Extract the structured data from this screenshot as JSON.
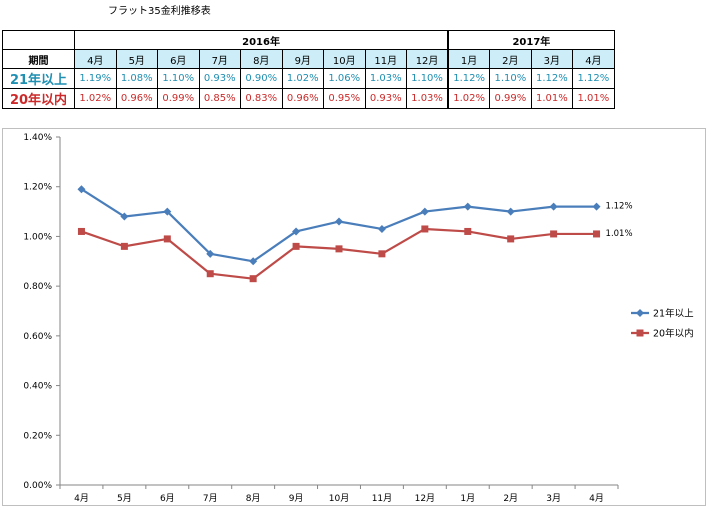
{
  "title": "フラット35金利推移表",
  "table": {
    "years": [
      {
        "label": "",
        "span": 1
      },
      {
        "label": "2016年",
        "span": 9
      },
      {
        "label": "2017年",
        "span": 4
      }
    ],
    "period_label": "期間",
    "months": [
      "4月",
      "5月",
      "6月",
      "7月",
      "8月",
      "9月",
      "10月",
      "11月",
      "12月",
      "1月",
      "2月",
      "3月",
      "4月"
    ],
    "rows": [
      {
        "label": "21年以上",
        "values": [
          "1.19%",
          "1.08%",
          "1.10%",
          "0.93%",
          "0.90%",
          "1.02%",
          "1.06%",
          "1.03%",
          "1.10%",
          "1.12%",
          "1.10%",
          "1.12%",
          "1.12%"
        ]
      },
      {
        "label": "20年以内",
        "values": [
          "1.02%",
          "0.96%",
          "0.99%",
          "0.85%",
          "0.83%",
          "0.96%",
          "0.95%",
          "0.93%",
          "1.03%",
          "1.02%",
          "0.99%",
          "1.01%",
          "1.01%"
        ]
      }
    ]
  },
  "chart_data": {
    "type": "line",
    "categories": [
      "4月",
      "5月",
      "6月",
      "7月",
      "8月",
      "9月",
      "10月",
      "11月",
      "12月",
      "1月",
      "2月",
      "3月",
      "4月"
    ],
    "series": [
      {
        "name": "21年以上",
        "color": "#4a7ebb",
        "marker": "diamond",
        "values": [
          1.19,
          1.08,
          1.1,
          0.93,
          0.9,
          1.02,
          1.06,
          1.03,
          1.1,
          1.12,
          1.1,
          1.12,
          1.12
        ],
        "end_label": "1.12%"
      },
      {
        "name": "20年以内",
        "color": "#be4b48",
        "marker": "square",
        "values": [
          1.02,
          0.96,
          0.99,
          0.85,
          0.83,
          0.96,
          0.95,
          0.93,
          1.03,
          1.02,
          0.99,
          1.01,
          1.01
        ],
        "end_label": "1.01%"
      }
    ],
    "ylim": [
      0,
      1.4
    ],
    "yticks": [
      "0.00%",
      "0.20%",
      "0.40%",
      "0.60%",
      "0.80%",
      "1.00%",
      "1.20%",
      "1.40%"
    ],
    "grid": false,
    "legend": "right"
  }
}
